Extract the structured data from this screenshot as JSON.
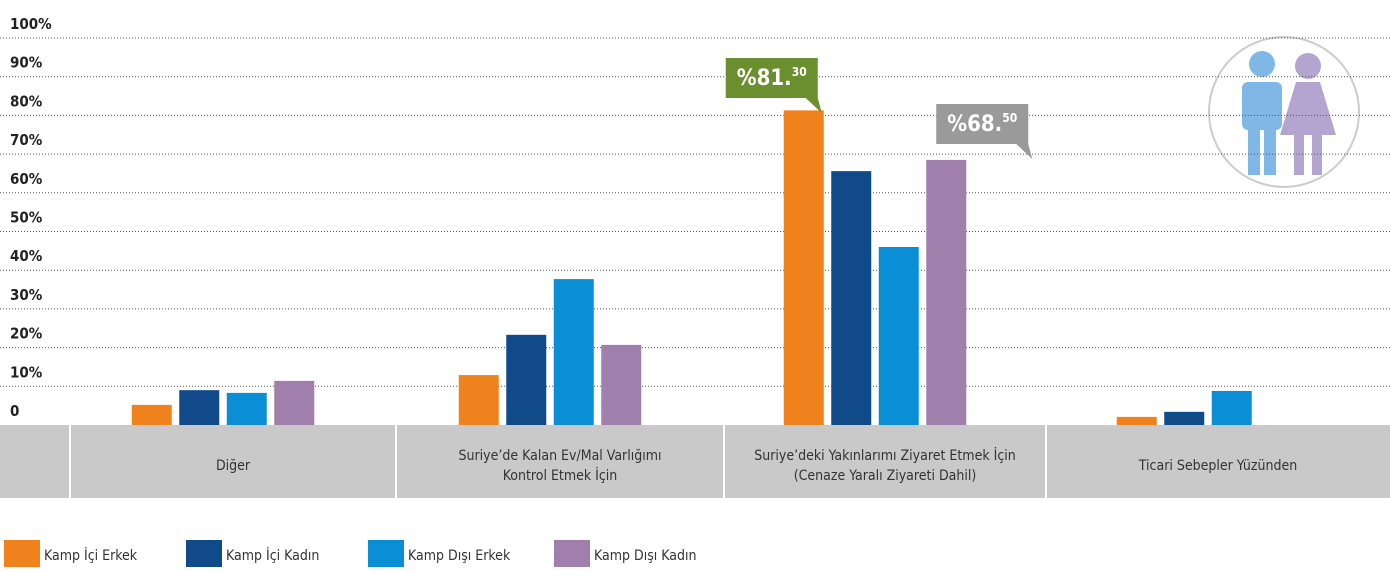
{
  "chart_data": {
    "type": "bar",
    "categories": [
      "Diğer",
      "Suriye’de Kalan Ev/Mal Varlığımı\nKontrol Etmek İçin",
      "Suriye’deki Yakınlarımı Ziyaret Etmek İçin\n(Cenaze Yaralı Ziyareti Dahil)",
      "Ticari Sebepler Yüzünden"
    ],
    "series": [
      {
        "name": "Kamp İçi Erkek",
        "color": "#f0821e",
        "values": [
          5.2,
          12.9,
          81.3,
          2.1
        ],
        "value_labels": [
          null,
          null,
          "%81.30",
          null
        ]
      },
      {
        "name": "Kamp İçi Kadın",
        "color": "#114a8b",
        "values": [
          9,
          23.3,
          65.6,
          3.4
        ]
      },
      {
        "name": "Kamp Dışı Erkek",
        "color": "#0a8fd6",
        "values": [
          8.3,
          37.7,
          46,
          8.8
        ]
      },
      {
        "name": "Kamp Dışı Kadın",
        "color": "#a07fac",
        "values": [
          11.4,
          20.7,
          68.5,
          null
        ],
        "value_labels": [
          null,
          null,
          "%68.50",
          null
        ]
      }
    ],
    "ylim": [
      0,
      100
    ],
    "yticks": [
      {
        "value": 0,
        "label": "0"
      },
      {
        "value": 10,
        "label": "10%"
      },
      {
        "value": 20,
        "label": "20%"
      },
      {
        "value": 30,
        "label": "30%"
      },
      {
        "value": 40,
        "label": "40%"
      },
      {
        "value": 50,
        "label": "50%"
      },
      {
        "value": 60,
        "label": "60%"
      },
      {
        "value": 70,
        "label": "70%"
      },
      {
        "value": 80,
        "label": "80%"
      },
      {
        "value": 90,
        "label": "90%"
      },
      {
        "value": 100,
        "label": "100%"
      }
    ],
    "grid": true
  }
}
